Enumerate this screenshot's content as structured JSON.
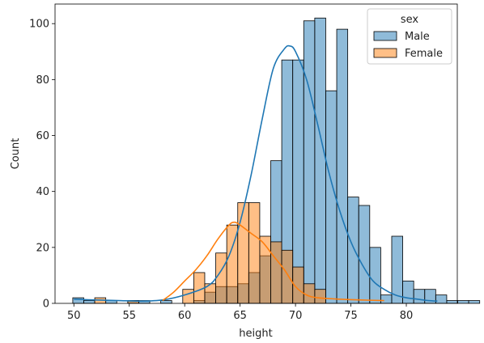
{
  "chart_data": {
    "type": "histogram",
    "xlabel": "height",
    "ylabel": "Count",
    "xlim": [
      48.3,
      84.6
    ],
    "ylim": [
      0,
      107
    ],
    "xticks": [
      50,
      55,
      60,
      65,
      70,
      75,
      80
    ],
    "yticks": [
      0,
      20,
      40,
      60,
      80,
      100
    ],
    "bin_start": 49.9,
    "bin_width": 0.9925,
    "grid": false,
    "legend": {
      "title": "sex",
      "placement": "top-right"
    },
    "series": [
      {
        "name": "Male",
        "color": "#1f77b4",
        "counts": [
          2,
          1,
          0,
          1,
          0,
          1,
          1,
          0,
          1,
          0,
          0,
          1,
          4,
          6,
          6,
          7,
          11,
          17,
          51,
          87,
          87,
          101,
          102,
          76,
          98,
          38,
          35,
          20,
          3,
          24,
          8,
          5,
          5,
          3,
          1,
          1,
          1
        ],
        "kde": [
          [
            50,
            1.5
          ],
          [
            52,
            1.2
          ],
          [
            54,
            1.0
          ],
          [
            56,
            0.8
          ],
          [
            58,
            1.2
          ],
          [
            60,
            3
          ],
          [
            62,
            6
          ],
          [
            63,
            10
          ],
          [
            64,
            17
          ],
          [
            65,
            29
          ],
          [
            66,
            46
          ],
          [
            67,
            66
          ],
          [
            68,
            84
          ],
          [
            69,
            91
          ],
          [
            69.5,
            92
          ],
          [
            70,
            90
          ],
          [
            71,
            80
          ],
          [
            72,
            64
          ],
          [
            73,
            47
          ],
          [
            74,
            33
          ],
          [
            75,
            22
          ],
          [
            76,
            14
          ],
          [
            77,
            8
          ],
          [
            78,
            5
          ],
          [
            79,
            3
          ],
          [
            80,
            2
          ],
          [
            81,
            1.5
          ],
          [
            82,
            1
          ],
          [
            82.8,
            0.8
          ]
        ]
      },
      {
        "name": "Female",
        "color": "#ff7f0e",
        "counts": [
          0,
          0,
          2,
          0,
          0,
          1,
          0,
          0,
          0,
          0,
          5,
          11,
          7,
          18,
          28,
          36,
          36,
          24,
          22,
          19,
          13,
          7,
          5,
          0,
          0,
          0,
          0,
          0,
          0,
          0,
          0,
          0,
          0,
          0,
          0,
          0,
          0
        ],
        "kde": [
          [
            58,
            1
          ],
          [
            59,
            4
          ],
          [
            60,
            8
          ],
          [
            61,
            12
          ],
          [
            62,
            17
          ],
          [
            63,
            23
          ],
          [
            64,
            28
          ],
          [
            64.5,
            29
          ],
          [
            65,
            28
          ],
          [
            66,
            25
          ],
          [
            67,
            22
          ],
          [
            68,
            17
          ],
          [
            69,
            12
          ],
          [
            70,
            6
          ],
          [
            71,
            3
          ],
          [
            72,
            2
          ],
          [
            74,
            1.5
          ],
          [
            76,
            1.2
          ],
          [
            78,
            1
          ]
        ]
      }
    ]
  }
}
